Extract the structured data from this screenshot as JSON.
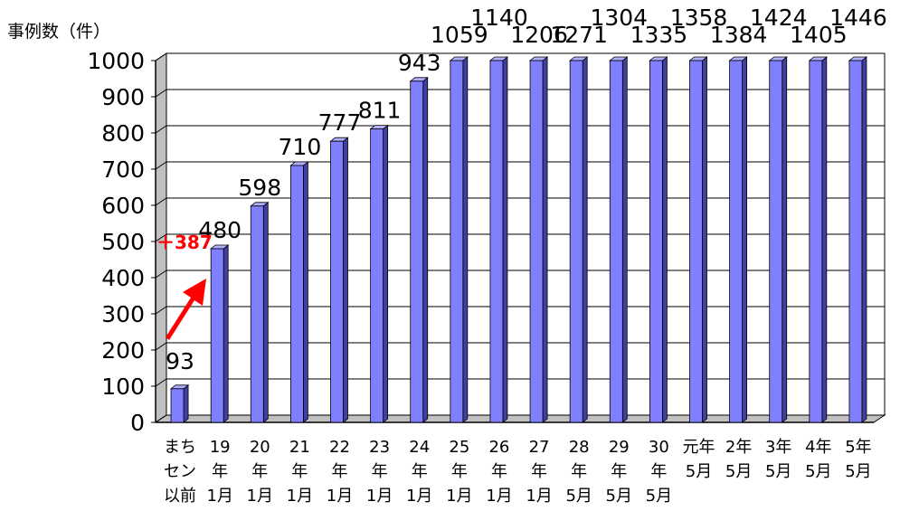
{
  "chart_data": {
    "type": "bar",
    "ylabel": "事例数（件）",
    "ylim": [
      0,
      1000
    ],
    "yticks": [
      "0",
      "100",
      "200",
      "300",
      "400",
      "500",
      "600",
      "700",
      "800",
      "900",
      "1000"
    ],
    "grid": true,
    "categories": [
      [
        "まち",
        "セン",
        "以前"
      ],
      [
        "19",
        "年",
        "1月"
      ],
      [
        "20",
        "年",
        "1月"
      ],
      [
        "21",
        "年",
        "1月"
      ],
      [
        "22",
        "年",
        "1月"
      ],
      [
        "23",
        "年",
        "1月"
      ],
      [
        "24",
        "年",
        "1月"
      ],
      [
        "25",
        "年",
        "1月"
      ],
      [
        "26",
        "年",
        "1月"
      ],
      [
        "27",
        "年",
        "1月"
      ],
      [
        "28",
        "年",
        "5月"
      ],
      [
        "29",
        "年",
        "5月"
      ],
      [
        "30",
        "年",
        "5月"
      ],
      [
        "元年",
        "5月"
      ],
      [
        "2年",
        "5月"
      ],
      [
        "3年",
        "5月"
      ],
      [
        "4年",
        "5月"
      ],
      [
        "5年",
        "5月"
      ]
    ],
    "values": [
      93,
      480,
      598,
      710,
      777,
      811,
      943,
      1059,
      1140,
      1206,
      1271,
      1304,
      1335,
      1358,
      1384,
      1424,
      1405,
      1446
    ],
    "value_labels": [
      "93",
      "480",
      "598",
      "710",
      "777",
      "811",
      "943",
      "1059",
      "1140",
      "1206",
      "1271",
      "1304",
      "1335",
      "1358",
      "1384",
      "1424",
      "1405",
      "1446"
    ],
    "annotation": "＋387",
    "colors": {
      "bar_front": "#8080ff",
      "bar_side": "#4040a0",
      "bar_top": "#b0b0ff",
      "wall": "#c0c0c0",
      "arrow": "#ff0000"
    }
  }
}
